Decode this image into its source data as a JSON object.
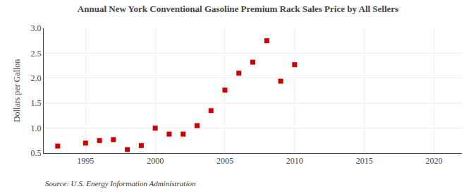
{
  "chart_data": {
    "type": "scatter",
    "title": "Annual New York Conventional Gasoline Premium Rack Sales Price by All Sellers",
    "ylabel": "Dollars per Gallon",
    "annotations": [
      "Source: U.S. Energy Information Administration"
    ],
    "x": [
      1993,
      1995,
      1996,
      1997,
      1998,
      1999,
      2000,
      2001,
      2002,
      2003,
      2004,
      2005,
      2006,
      2007,
      2008,
      2009,
      2010
    ],
    "values": [
      0.64,
      0.7,
      0.75,
      0.77,
      0.57,
      0.65,
      1.0,
      0.88,
      0.88,
      1.05,
      1.35,
      1.76,
      2.1,
      2.32,
      2.75,
      1.94,
      2.27
    ],
    "color": "#cc0000",
    "marker": "square",
    "xlim": [
      1992,
      2022
    ],
    "ylim": [
      0.5,
      3.0
    ],
    "xticks": [
      1995,
      2000,
      2005,
      2010,
      2015,
      2020
    ],
    "yticks": [
      0.5,
      {
        "value": 1.0,
        "label": "1.0"
      },
      1.5,
      {
        "value": 2.0,
        "label": "2.0"
      },
      2.5,
      {
        "value": 3.0,
        "label": "3.0"
      }
    ],
    "grid": true
  }
}
